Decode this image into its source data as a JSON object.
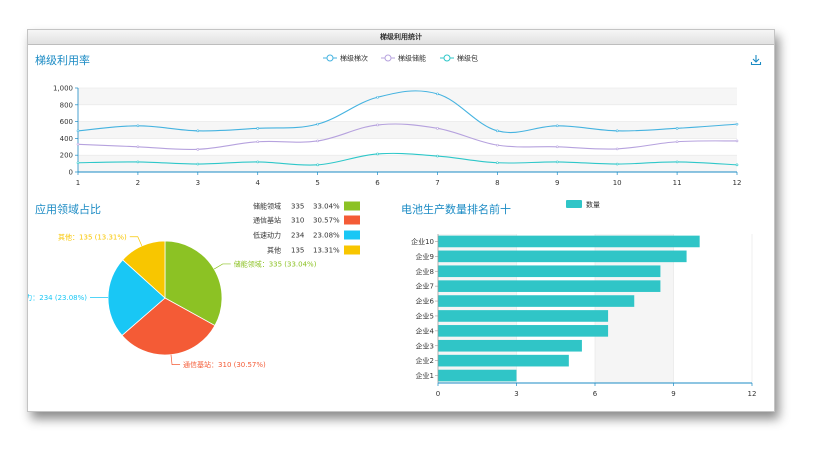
{
  "header": {
    "title": "梯级利用统计"
  },
  "icons": {
    "download": "download-icon"
  },
  "colors": {
    "title": "#1b8bc4",
    "axis": "#1b8bc4",
    "line_series": [
      "#45b3e0",
      "#b6a2de",
      "#2ec7c9"
    ],
    "pie": [
      "#8cc224",
      "#f45b36",
      "#19c7f5",
      "#f8c600"
    ],
    "bar": "#30c5c7"
  },
  "chart_data": [
    {
      "type": "line",
      "title": "梯级利用率",
      "x": [
        1,
        2,
        3,
        4,
        5,
        6,
        7,
        8,
        9,
        10,
        11,
        12
      ],
      "ylim": [
        0,
        1000
      ],
      "yticks": [
        0,
        200,
        400,
        600,
        800,
        1000
      ],
      "ytick_labels": [
        "0",
        "200",
        "400",
        "600",
        "800",
        "1,000"
      ],
      "grid": true,
      "legend": "top-center",
      "series": [
        {
          "name": "梯级梯次",
          "values": [
            490,
            550,
            490,
            520,
            570,
            890,
            930,
            490,
            550,
            490,
            520,
            570
          ]
        },
        {
          "name": "梯级储能",
          "values": [
            330,
            300,
            270,
            360,
            370,
            560,
            520,
            320,
            300,
            275,
            360,
            370
          ]
        },
        {
          "name": "梯级包",
          "values": [
            110,
            120,
            95,
            120,
            85,
            215,
            190,
            110,
            120,
            95,
            120,
            85
          ]
        }
      ]
    },
    {
      "type": "pie",
      "title": "应用领域占比",
      "legend": "right",
      "slices": [
        {
          "name": "储能领域",
          "value": 335,
          "percent": "33.04%"
        },
        {
          "name": "通信基站",
          "value": 310,
          "percent": "30.57%"
        },
        {
          "name": "低速动力",
          "value": 234,
          "percent": "23.08%"
        },
        {
          "name": "其他",
          "value": 135,
          "percent": "13.31%"
        }
      ]
    },
    {
      "type": "bar",
      "orientation": "horizontal",
      "title": "电池生产数量排名前十",
      "legend": "top-center",
      "categories": [
        "企业1",
        "企业2",
        "企业3",
        "企业4",
        "企业5",
        "企业6",
        "企业7",
        "企业8",
        "企业9",
        "企业10"
      ],
      "series": [
        {
          "name": "数量",
          "values": [
            3,
            5,
            5.5,
            6.5,
            6.5,
            7.5,
            8.5,
            8.5,
            9.5,
            10
          ]
        }
      ],
      "xlim": [
        0,
        12
      ],
      "xticks": [
        0,
        3,
        6,
        9,
        12
      ]
    }
  ]
}
